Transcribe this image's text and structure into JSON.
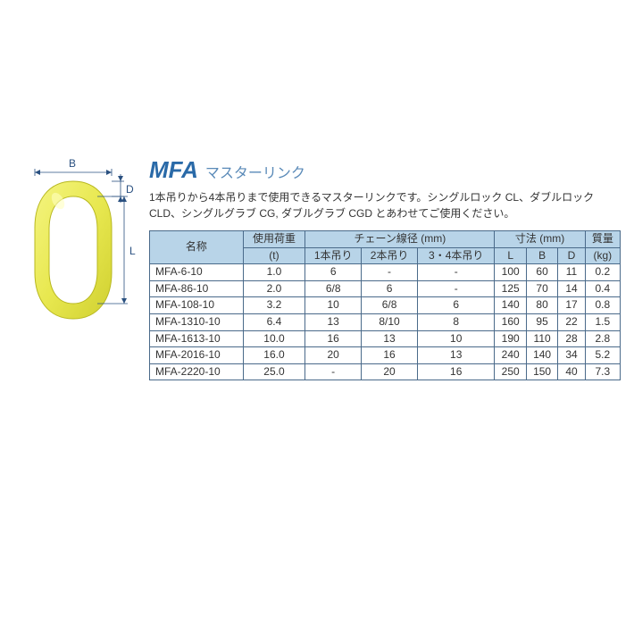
{
  "title": {
    "code": "MFA",
    "label": "マスターリンク"
  },
  "description": "1本吊りから4本吊りまで使用できるマスターリンクです。シングルロック CL、ダブルロック CLD、シングルグラブ CG, ダブルグラブ CGD とあわせてご使用ください。",
  "diagram": {
    "labels": {
      "B": "B",
      "D": "D",
      "L": "L"
    },
    "ring_fill": "#e8e850",
    "ring_stroke": "#c0c020",
    "dim_line_color": "#2a5080",
    "dim_text_color": "#2a5080",
    "arrow_color": "#2a5080"
  },
  "table": {
    "header_bg": "#b8d4e8",
    "border_color": "#4a6a8a",
    "font_size_pt": 10,
    "columns": {
      "name": "名称",
      "load": "使用荷重",
      "load_unit": "(t)",
      "chain_group": "チェーン線径 (mm)",
      "chain1": "1本吊り",
      "chain2": "2本吊り",
      "chain34": "3・4本吊り",
      "dim_group": "寸法 (mm)",
      "L": "L",
      "B": "B",
      "D": "D",
      "mass": "質量",
      "mass_unit": "(kg)"
    },
    "rows": [
      {
        "name": "MFA-6-10",
        "load": "1.0",
        "c1": "6",
        "c2": "-",
        "c34": "-",
        "L": "100",
        "B": "60",
        "D": "11",
        "kg": "0.2"
      },
      {
        "name": "MFA-86-10",
        "load": "2.0",
        "c1": "6/8",
        "c2": "6",
        "c34": "-",
        "L": "125",
        "B": "70",
        "D": "14",
        "kg": "0.4"
      },
      {
        "name": "MFA-108-10",
        "load": "3.2",
        "c1": "10",
        "c2": "6/8",
        "c34": "6",
        "L": "140",
        "B": "80",
        "D": "17",
        "kg": "0.8"
      },
      {
        "name": "MFA-1310-10",
        "load": "6.4",
        "c1": "13",
        "c2": "8/10",
        "c34": "8",
        "L": "160",
        "B": "95",
        "D": "22",
        "kg": "1.5"
      },
      {
        "name": "MFA-1613-10",
        "load": "10.0",
        "c1": "16",
        "c2": "13",
        "c34": "10",
        "L": "190",
        "B": "110",
        "D": "28",
        "kg": "2.8"
      },
      {
        "name": "MFA-2016-10",
        "load": "16.0",
        "c1": "20",
        "c2": "16",
        "c34": "13",
        "L": "240",
        "B": "140",
        "D": "34",
        "kg": "5.2"
      },
      {
        "name": "MFA-2220-10",
        "load": "25.0",
        "c1": "-",
        "c2": "20",
        "c34": "16",
        "L": "250",
        "B": "150",
        "D": "40",
        "kg": "7.3"
      }
    ]
  },
  "style": {
    "title_code_color": "#2a6aa8",
    "title_code_size_pt": 20,
    "title_code_weight": "bold",
    "title_label_color": "#5a8ab8",
    "title_label_size_pt": 13,
    "desc_color": "#333333",
    "desc_size_pt": 10,
    "body_text_color": "#333333"
  }
}
